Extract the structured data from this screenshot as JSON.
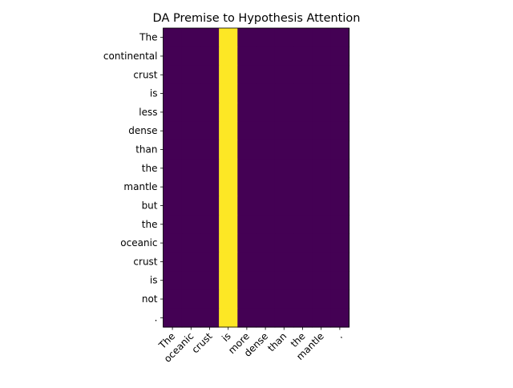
{
  "chart_data": {
    "type": "heatmap",
    "title": "DA Premise to Hypothesis Attention",
    "xlabel": "",
    "ylabel": "",
    "x_labels": [
      "The",
      "oceanic",
      "crust",
      "is",
      "more",
      "dense",
      "than",
      "the",
      "mantle",
      "."
    ],
    "y_labels": [
      "The",
      "continental",
      "crust",
      "is",
      "less",
      "dense",
      "than",
      "the",
      "mantle",
      "but",
      "the",
      "oceanic",
      "crust",
      "is",
      "not",
      "."
    ],
    "values": [
      [
        0,
        0,
        0,
        1,
        0,
        0,
        0,
        0,
        0,
        0
      ],
      [
        0,
        0,
        0,
        1,
        0,
        0,
        0,
        0,
        0,
        0
      ],
      [
        0,
        0,
        0,
        1,
        0,
        0,
        0,
        0,
        0,
        0
      ],
      [
        0,
        0,
        0,
        1,
        0,
        0,
        0,
        0,
        0,
        0
      ],
      [
        0,
        0,
        0,
        1,
        0,
        0,
        0,
        0,
        0,
        0
      ],
      [
        0,
        0,
        0,
        1,
        0,
        0,
        0,
        0,
        0,
        0
      ],
      [
        0,
        0,
        0,
        1,
        0,
        0,
        0,
        0,
        0,
        0
      ],
      [
        0,
        0,
        0,
        1,
        0,
        0,
        0,
        0,
        0,
        0
      ],
      [
        0,
        0,
        0,
        1,
        0,
        0,
        0,
        0,
        0,
        0
      ],
      [
        0,
        0,
        0,
        1,
        0,
        0,
        0,
        0,
        0,
        0
      ],
      [
        0,
        0,
        0,
        1,
        0,
        0,
        0,
        0,
        0,
        0
      ],
      [
        0,
        0,
        0,
        1,
        0,
        0,
        0,
        0,
        0,
        0
      ],
      [
        0,
        0,
        0,
        1,
        0,
        0,
        0,
        0,
        0,
        0
      ],
      [
        0,
        0,
        0,
        1,
        0,
        0,
        0,
        0,
        0,
        0
      ],
      [
        0,
        0,
        0,
        1,
        0,
        0,
        0,
        0,
        0,
        0
      ],
      [
        0,
        0,
        0,
        1,
        0,
        0,
        0,
        0,
        0,
        0
      ]
    ],
    "colormap": "viridis",
    "colors": {
      "low": "#440154",
      "high": "#fde725"
    },
    "grid": false,
    "legend": "none"
  }
}
